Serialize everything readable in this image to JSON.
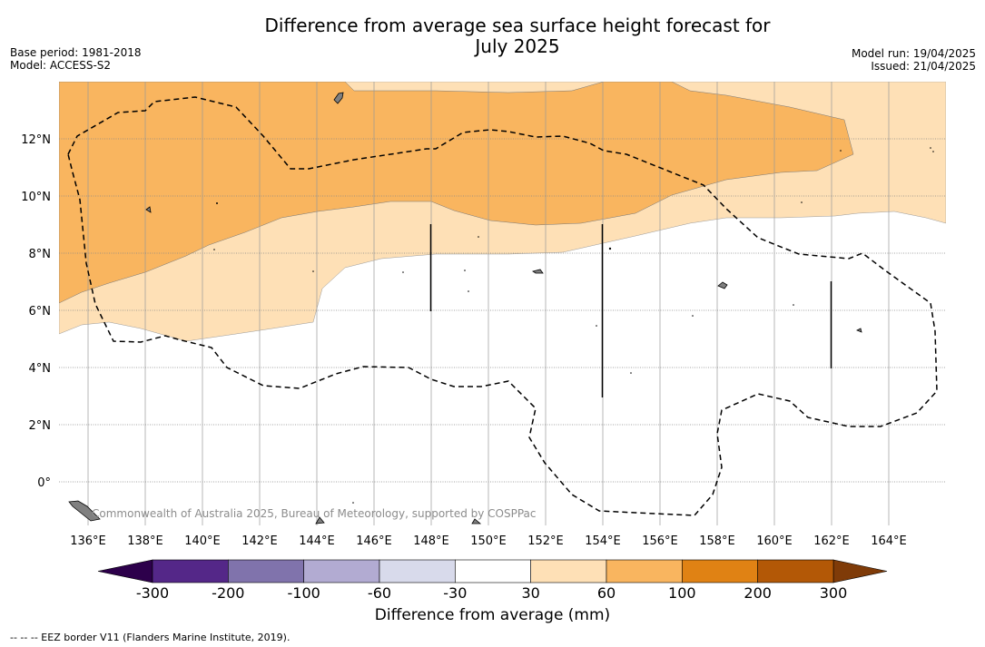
{
  "title_line1": "Difference from average sea surface height forecast for",
  "title_line2": "July 2025",
  "meta_left": {
    "line1": "Base period: 1981-2018",
    "line2": "Model: ACCESS-S2"
  },
  "meta_right": {
    "line1": "Model run: 19/04/2025",
    "line2": "Issued: 21/04/2025"
  },
  "copyright": "Commonwealth of Australia 2025, Bureau of Meteorology, supported by COSPPac",
  "footnote": "--  --  -- EEZ border V11 (Flanders Marine Institute, 2019).",
  "map": {
    "lon_ticks": [
      136,
      138,
      140,
      142,
      144,
      146,
      148,
      150,
      152,
      154,
      156,
      158,
      160,
      162,
      164
    ],
    "lon_tick_labels": [
      "136°E",
      "138°E",
      "140°E",
      "142°E",
      "144°E",
      "146°E",
      "148°E",
      "150°E",
      "152°E",
      "154°E",
      "156°E",
      "158°E",
      "160°E",
      "162°E",
      "164°E"
    ],
    "lat_ticks": [
      0,
      2,
      4,
      6,
      8,
      10,
      12
    ],
    "lat_tick_labels": [
      "0°",
      "2°N",
      "4°N",
      "6°N",
      "8°N",
      "10°N",
      "12°N"
    ],
    "lon_range": [
      135,
      166
    ],
    "lat_range": [
      -1.5,
      14
    ],
    "fill_colors": {
      "30-60": "#fee0b6",
      "60-100": "#f9b55f"
    }
  },
  "colorbar": {
    "title": "Difference from average (mm)",
    "labels": [
      "-300",
      "-200",
      "-100",
      "-60",
      "-30",
      "30",
      "60",
      "100",
      "200",
      "300"
    ],
    "colors": [
      "#542788",
      "#8073ac",
      "#b2abd2",
      "#d8daeb",
      "#ffffff",
      "#fee0b6",
      "#f9b55f",
      "#e08214",
      "#b35806"
    ],
    "under_color": "#2d004b",
    "over_color": "#7f3b08"
  }
}
